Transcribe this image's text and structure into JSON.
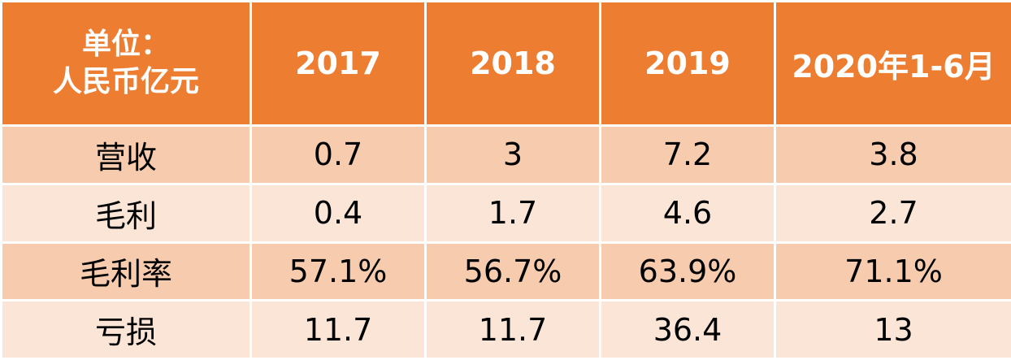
{
  "table": {
    "header": {
      "unit_line1": "单位：",
      "unit_line2": "人民币亿元",
      "columns": [
        "2017",
        "2018",
        "2019",
        "2020年1-6月"
      ]
    },
    "rows": [
      {
        "label": "营收",
        "values": [
          "0.7",
          "3",
          "7.2",
          "3.8"
        ]
      },
      {
        "label": "毛利",
        "values": [
          "0.4",
          "1.7",
          "4.6",
          "2.7"
        ]
      },
      {
        "label": "毛利率",
        "values": [
          "57.1%",
          "56.7%",
          "63.9%",
          "71.1%"
        ]
      },
      {
        "label": "亏损",
        "values": [
          "11.7",
          "11.7",
          "36.4",
          "13"
        ]
      }
    ],
    "colors": {
      "header_bg": "#ec7d31",
      "row_dark": "#f7cbad",
      "row_light": "#fbe5d6"
    }
  }
}
